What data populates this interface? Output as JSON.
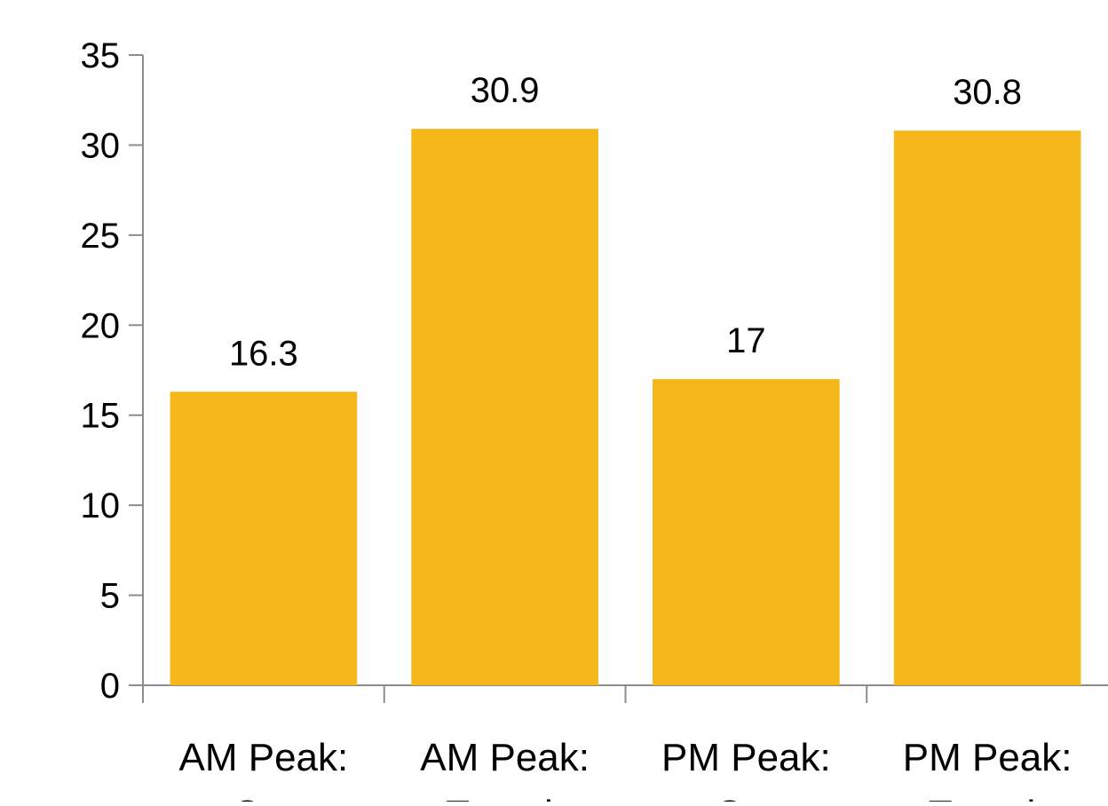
{
  "chart_data": {
    "type": "bar",
    "categories": [
      [
        "AM Peak:",
        "Car"
      ],
      [
        "AM Peak:",
        "Transit"
      ],
      [
        "PM Peak:",
        "Car"
      ],
      [
        "PM Peak:",
        "Transit"
      ]
    ],
    "values": [
      16.3,
      30.9,
      17,
      30.8
    ],
    "data_labels": [
      "16.3",
      "30.9",
      "17",
      "30.8"
    ],
    "y_ticks": [
      "0",
      "5",
      "10",
      "15",
      "20",
      "25",
      "30",
      "35"
    ],
    "ylim": [
      0,
      35
    ],
    "title": "",
    "xlabel": "",
    "ylabel": "",
    "grid": false,
    "legend": "none",
    "bar_color": "#F5B617",
    "axis_color": "#8C8C8C"
  }
}
